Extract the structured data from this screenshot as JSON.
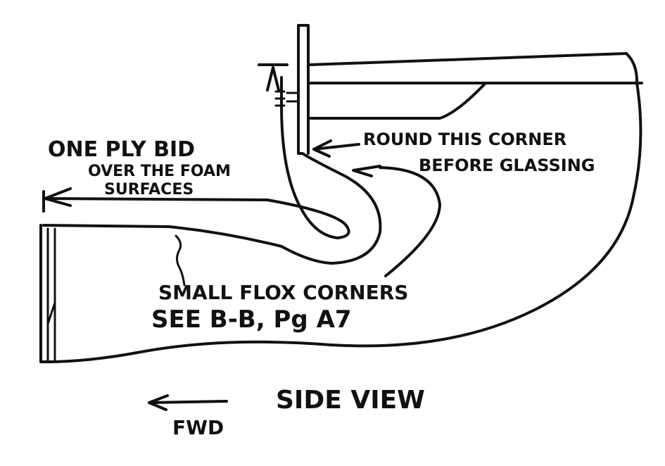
{
  "diagram": {
    "labels": {
      "ply_line1": "ONE PLY BID",
      "ply_line2": "OVER THE FOAM",
      "ply_line3": "SURFACES",
      "round_line1": "ROUND THIS CORNER",
      "round_line2": "BEFORE GLASSING",
      "flox_line1": "SMALL FLOX CORNERS",
      "flox_line2": "SEE B-B, Pg A7",
      "view_title": "SIDE VIEW",
      "fwd": "FWD"
    },
    "colors": {
      "ink": "#111111",
      "paper": "#ffffff"
    }
  }
}
